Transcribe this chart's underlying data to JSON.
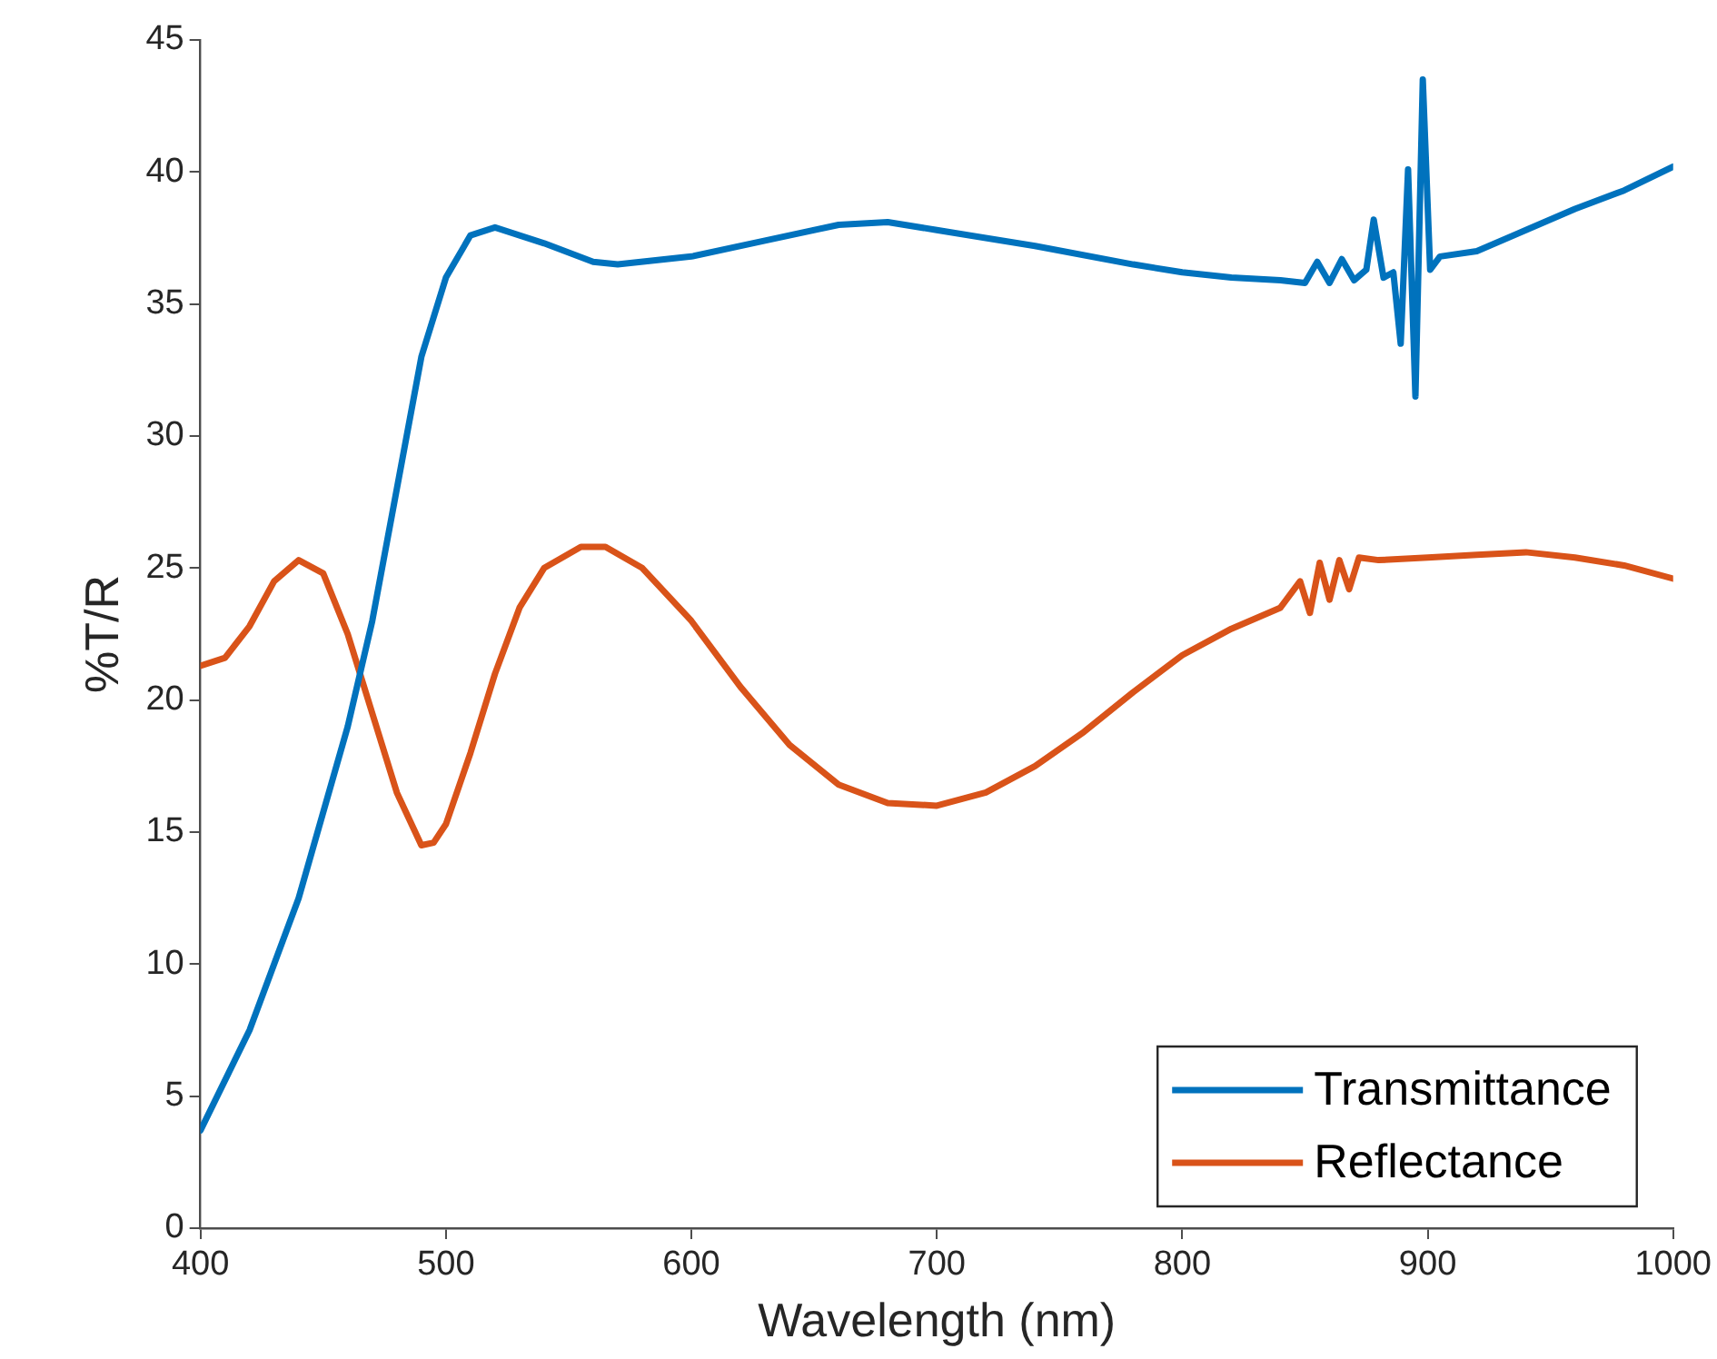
{
  "chart_data": {
    "type": "line",
    "xlabel": "Wavelength (nm)",
    "ylabel": "%T/R",
    "xlim": [
      400,
      1000
    ],
    "xticks": [
      400,
      500,
      600,
      700,
      800,
      900,
      1000
    ],
    "ylim": [
      0,
      45
    ],
    "yticks": [
      0,
      5,
      10,
      15,
      20,
      25,
      30,
      35,
      40,
      45
    ],
    "grid": false,
    "legend": "bottom right",
    "marker": "none",
    "line_style": "solid",
    "series": [
      {
        "name": "Transmittance",
        "color": "#0072bd",
        "x": [
          400,
          420,
          440,
          460,
          470,
          480,
          490,
          500,
          510,
          520,
          540,
          560,
          570,
          600,
          630,
          660,
          680,
          700,
          740,
          780,
          800,
          820,
          840,
          850,
          855,
          860,
          865,
          870,
          875,
          878,
          882,
          886,
          889,
          892,
          895,
          898,
          901,
          905,
          920,
          940,
          960,
          980,
          1000
        ],
        "values": [
          3.7,
          7.5,
          12.5,
          19,
          23,
          28,
          33,
          36,
          37.6,
          37.9,
          37.3,
          36.6,
          36.5,
          36.8,
          37.4,
          38,
          38.1,
          37.8,
          37.2,
          36.5,
          36.2,
          36,
          35.9,
          35.8,
          36.6,
          35.8,
          36.7,
          35.9,
          36.3,
          38.2,
          36,
          36.2,
          33.5,
          40.1,
          31.5,
          43.5,
          36.3,
          36.8,
          37,
          37.8,
          38.6,
          39.3,
          40.2
        ]
      },
      {
        "name": "Reflectance",
        "color": "#d95319",
        "x": [
          400,
          410,
          420,
          430,
          440,
          450,
          460,
          470,
          480,
          490,
          495,
          500,
          510,
          520,
          530,
          540,
          555,
          565,
          580,
          600,
          620,
          640,
          660,
          680,
          700,
          720,
          740,
          760,
          780,
          800,
          820,
          840,
          848,
          852,
          856,
          860,
          864,
          868,
          872,
          880,
          900,
          920,
          940,
          960,
          980,
          1000
        ],
        "values": [
          21.3,
          21.6,
          22.8,
          24.5,
          25.3,
          24.8,
          22.5,
          19.5,
          16.5,
          14.5,
          14.6,
          15.3,
          18,
          21,
          23.5,
          25,
          25.8,
          25.8,
          25,
          23,
          20.5,
          18.3,
          16.8,
          16.1,
          16,
          16.5,
          17.5,
          18.8,
          20.3,
          21.7,
          22.7,
          23.5,
          24.5,
          23.3,
          25.2,
          23.8,
          25.3,
          24.2,
          25.4,
          25.3,
          25.4,
          25.5,
          25.6,
          25.4,
          25.1,
          24.6
        ]
      }
    ]
  }
}
